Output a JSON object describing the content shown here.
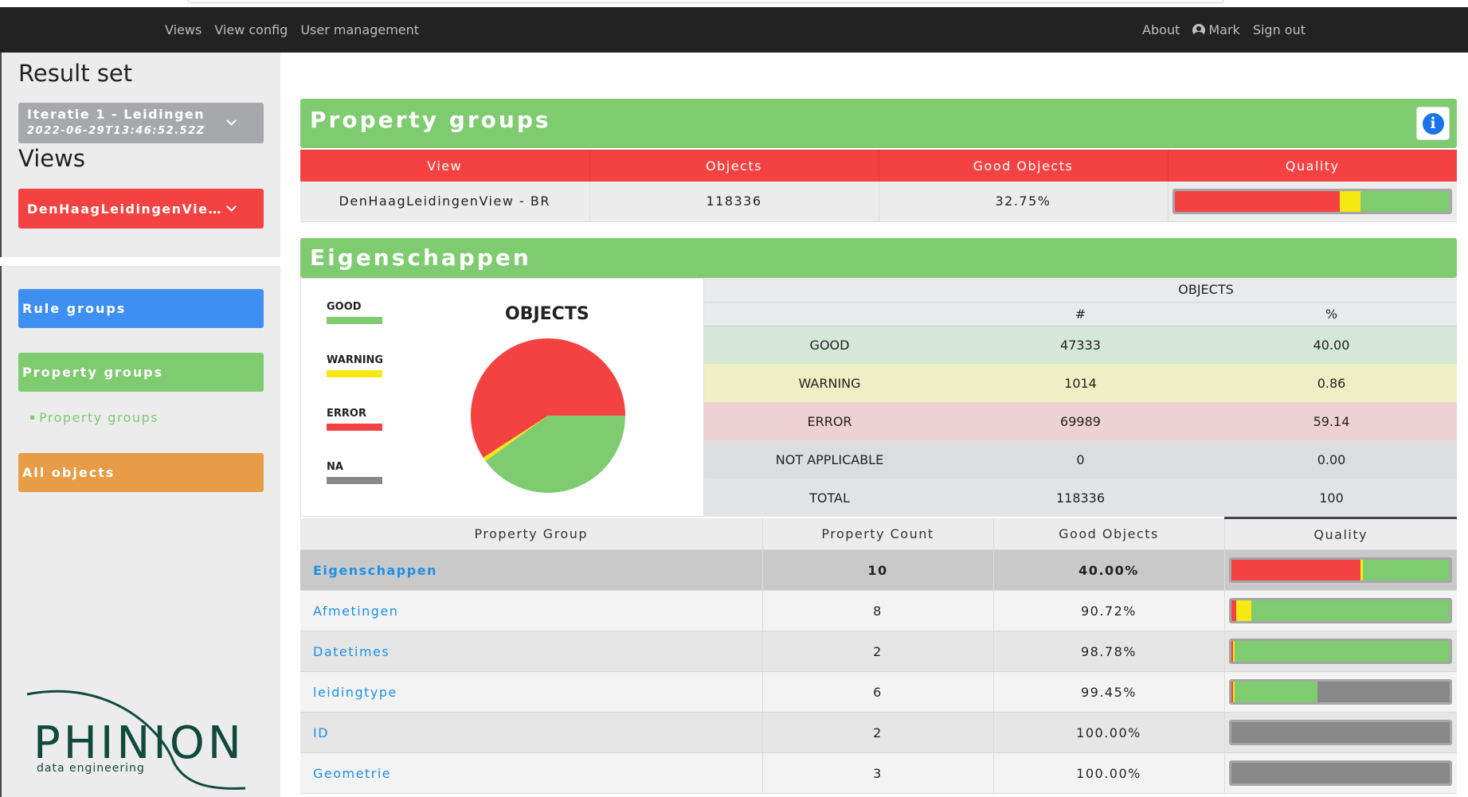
{
  "navbar": {
    "left_links": [
      "Views",
      "View config",
      "User management"
    ],
    "about": "About",
    "user": "Mark",
    "sign_out": "Sign out"
  },
  "sidebar": {
    "result_set_heading": "Result set",
    "result_set_select": {
      "line1": "Iteratie 1 - Leidingen",
      "line2": "2022-06-29T13:46:52.52Z",
      "color": "#a6a8ab"
    },
    "views_heading": "Views",
    "views_select": {
      "label": "DenHaagLeidingenView - BR",
      "color": "#f44242"
    },
    "rule_groups": {
      "label": "Rule groups",
      "color": "#3d8ff2"
    },
    "property_groups": {
      "label": "Property groups",
      "color": "#7fcb70"
    },
    "property_groups_sublink": "Property groups",
    "all_objects": {
      "label": "All objects",
      "color": "#e89c45"
    },
    "logo": {
      "name": "PHINION",
      "tagline": "data engineering",
      "color": "#0f4a3a"
    }
  },
  "property_groups_panel": {
    "title": "Property groups",
    "columns": [
      "View",
      "Objects",
      "Good Objects",
      "Quality"
    ],
    "row": {
      "view": "DenHaagLeidingenView - BR",
      "objects": "118336",
      "good_objects": "32.75%",
      "quality": {
        "error": 0.6,
        "warning": 0.075,
        "good": 0.325,
        "na": 0
      }
    }
  },
  "eigenschappen_panel": {
    "title": "Eigenschappen",
    "legend": [
      {
        "label": "GOOD",
        "color": "#7fcb70"
      },
      {
        "label": "WARNING",
        "color": "#f6e813"
      },
      {
        "label": "ERROR",
        "color": "#f44242"
      },
      {
        "label": "NA",
        "color": "#888888"
      }
    ],
    "chart_title": "OBJECTS",
    "chart_data": {
      "type": "pie",
      "title": "OBJECTS",
      "labels": [
        "GOOD",
        "WARNING",
        "ERROR",
        "NA"
      ],
      "values": [
        47333,
        1014,
        69989,
        0
      ],
      "colors": [
        "#7fcb70",
        "#f6e813",
        "#f44242",
        "#888888"
      ]
    },
    "objects_table": {
      "group_header": "OBJECTS",
      "col_count": "#",
      "col_percent": "%",
      "rows": [
        {
          "label": "GOOD",
          "count": "47333",
          "percent": "40.00",
          "bg": "#d5e7d6"
        },
        {
          "label": "WARNING",
          "count": "1014",
          "percent": "0.86",
          "bg": "#efefc5"
        },
        {
          "label": "ERROR",
          "count": "69989",
          "percent": "59.14",
          "bg": "#eed1d3"
        },
        {
          "label": "NOT APPLICABLE",
          "count": "0",
          "percent": "0.00",
          "bg": "#dcdddf"
        },
        {
          "label": "TOTAL",
          "count": "118336",
          "percent": "100",
          "bg": "#e3e4e6"
        }
      ]
    },
    "groups_table": {
      "columns": [
        "Property Group",
        "Property Count",
        "Good Objects",
        "Quality"
      ],
      "rows": [
        {
          "name": "Eigenschappen",
          "count": "10",
          "good": "40.00%",
          "active": true,
          "quality": {
            "error": 0.59,
            "warning": 0.01,
            "good": 0.4,
            "na": 0
          }
        },
        {
          "name": "Afmetingen",
          "count": "8",
          "good": "90.72%",
          "active": false,
          "quality": {
            "error": 0.02,
            "warning": 0.07,
            "good": 0.91,
            "na": 0
          }
        },
        {
          "name": "Datetimes",
          "count": "2",
          "good": "98.78%",
          "active": false,
          "quality": {
            "error": 0.008,
            "warning": 0.005,
            "good": 0.987,
            "na": 0
          }
        },
        {
          "name": "leidingtype",
          "count": "6",
          "good": "99.45%",
          "active": false,
          "quality": {
            "error": 0.008,
            "warning": 0.005,
            "good": 0.38,
            "na": 0.607
          }
        },
        {
          "name": "ID",
          "count": "2",
          "good": "100.00%",
          "active": false,
          "quality": {
            "error": 0,
            "warning": 0,
            "good": 0,
            "na": 1
          }
        },
        {
          "name": "Geometrie",
          "count": "3",
          "good": "100.00%",
          "active": false,
          "quality": {
            "error": 0,
            "warning": 0,
            "good": 0,
            "na": 1
          }
        }
      ]
    }
  },
  "colors": {
    "good": "#7fcb70",
    "warning": "#f6e813",
    "error": "#f44242",
    "na": "#888888",
    "link": "#1e90e8",
    "navbar": "#222222"
  }
}
